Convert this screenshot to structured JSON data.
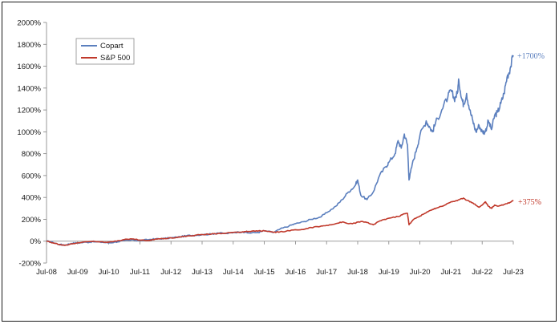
{
  "chart_data": {
    "type": "line",
    "title": "",
    "xlabel": "",
    "ylabel": "",
    "x_ticks": [
      "Jul-08",
      "Jul-09",
      "Jul-10",
      "Jul-11",
      "Jul-12",
      "Jul-13",
      "Jul-14",
      "Jul-15",
      "Jul-16",
      "Jul-17",
      "Jul-18",
      "Jul-19",
      "Jul-20",
      "Jul-21",
      "Jul-22",
      "Jul-23"
    ],
    "y_ticks": [
      "-200%",
      "0%",
      "200%",
      "400%",
      "600%",
      "800%",
      "1000%",
      "1200%",
      "1400%",
      "1600%",
      "1800%",
      "2000%"
    ],
    "ylim": [
      -200,
      2000
    ],
    "xlim": [
      2008.5,
      2023.5
    ],
    "grid": false,
    "legend_position": "top-left",
    "series": [
      {
        "name": "Copart",
        "color": "#5b7fbe",
        "end_label": "+1700%",
        "points": [
          [
            2008.5,
            0
          ],
          [
            2008.7,
            -10
          ],
          [
            2008.9,
            -30
          ],
          [
            2009.1,
            -35
          ],
          [
            2009.3,
            -20
          ],
          [
            2009.5,
            -15
          ],
          [
            2009.8,
            -10
          ],
          [
            2010.0,
            -5
          ],
          [
            2010.3,
            -10
          ],
          [
            2010.5,
            -15
          ],
          [
            2010.8,
            -5
          ],
          [
            2011.0,
            5
          ],
          [
            2011.3,
            10
          ],
          [
            2011.5,
            5
          ],
          [
            2011.8,
            15
          ],
          [
            2012.0,
            20
          ],
          [
            2012.3,
            25
          ],
          [
            2012.5,
            30
          ],
          [
            2012.8,
            40
          ],
          [
            2013.0,
            50
          ],
          [
            2013.3,
            55
          ],
          [
            2013.5,
            60
          ],
          [
            2013.8,
            65
          ],
          [
            2014.0,
            75
          ],
          [
            2014.3,
            70
          ],
          [
            2014.5,
            80
          ],
          [
            2014.8,
            85
          ],
          [
            2015.0,
            75
          ],
          [
            2015.3,
            80
          ],
          [
            2015.5,
            95
          ],
          [
            2015.8,
            80
          ],
          [
            2016.0,
            110
          ],
          [
            2016.3,
            140
          ],
          [
            2016.5,
            160
          ],
          [
            2016.8,
            180
          ],
          [
            2017.0,
            200
          ],
          [
            2017.3,
            220
          ],
          [
            2017.5,
            260
          ],
          [
            2017.8,
            320
          ],
          [
            2018.0,
            380
          ],
          [
            2018.2,
            450
          ],
          [
            2018.4,
            500
          ],
          [
            2018.5,
            560
          ],
          [
            2018.6,
            420
          ],
          [
            2018.8,
            380
          ],
          [
            2019.0,
            450
          ],
          [
            2019.2,
            600
          ],
          [
            2019.4,
            680
          ],
          [
            2019.5,
            720
          ],
          [
            2019.7,
            800
          ],
          [
            2019.8,
            920
          ],
          [
            2019.9,
            850
          ],
          [
            2020.0,
            980
          ],
          [
            2020.1,
            880
          ],
          [
            2020.15,
            560
          ],
          [
            2020.25,
            700
          ],
          [
            2020.4,
            850
          ],
          [
            2020.5,
            970
          ],
          [
            2020.7,
            1100
          ],
          [
            2020.8,
            1050
          ],
          [
            2020.9,
            1000
          ],
          [
            2021.0,
            1080
          ],
          [
            2021.2,
            1200
          ],
          [
            2021.4,
            1320
          ],
          [
            2021.5,
            1380
          ],
          [
            2021.6,
            1300
          ],
          [
            2021.7,
            1350
          ],
          [
            2021.75,
            1470
          ],
          [
            2021.85,
            1300
          ],
          [
            2021.9,
            1250
          ],
          [
            2022.0,
            1350
          ],
          [
            2022.1,
            1200
          ],
          [
            2022.2,
            1100
          ],
          [
            2022.3,
            1000
          ],
          [
            2022.4,
            1060
          ],
          [
            2022.5,
            1000
          ],
          [
            2022.6,
            1000
          ],
          [
            2022.7,
            1100
          ],
          [
            2022.8,
            1020
          ],
          [
            2022.9,
            1150
          ],
          [
            2023.0,
            1180
          ],
          [
            2023.1,
            1260
          ],
          [
            2023.2,
            1350
          ],
          [
            2023.3,
            1500
          ],
          [
            2023.4,
            1580
          ],
          [
            2023.5,
            1700
          ]
        ]
      },
      {
        "name": "S&P 500",
        "color": "#c0392b",
        "end_label": "+375%",
        "points": [
          [
            2008.5,
            0
          ],
          [
            2008.7,
            -15
          ],
          [
            2008.9,
            -30
          ],
          [
            2009.1,
            -38
          ],
          [
            2009.3,
            -25
          ],
          [
            2009.5,
            -15
          ],
          [
            2009.8,
            -5
          ],
          [
            2010.0,
            0
          ],
          [
            2010.3,
            -5
          ],
          [
            2010.5,
            -10
          ],
          [
            2010.8,
            5
          ],
          [
            2011.0,
            15
          ],
          [
            2011.3,
            20
          ],
          [
            2011.5,
            10
          ],
          [
            2011.8,
            5
          ],
          [
            2012.0,
            20
          ],
          [
            2012.3,
            25
          ],
          [
            2012.5,
            30
          ],
          [
            2012.8,
            40
          ],
          [
            2013.0,
            45
          ],
          [
            2013.3,
            55
          ],
          [
            2013.5,
            60
          ],
          [
            2013.8,
            65
          ],
          [
            2014.0,
            70
          ],
          [
            2014.3,
            75
          ],
          [
            2014.5,
            80
          ],
          [
            2014.8,
            85
          ],
          [
            2015.0,
            90
          ],
          [
            2015.3,
            92
          ],
          [
            2015.5,
            95
          ],
          [
            2015.8,
            80
          ],
          [
            2016.0,
            85
          ],
          [
            2016.3,
            95
          ],
          [
            2016.5,
            105
          ],
          [
            2016.8,
            110
          ],
          [
            2017.0,
            125
          ],
          [
            2017.3,
            135
          ],
          [
            2017.5,
            145
          ],
          [
            2017.8,
            160
          ],
          [
            2018.0,
            175
          ],
          [
            2018.2,
            160
          ],
          [
            2018.4,
            165
          ],
          [
            2018.6,
            180
          ],
          [
            2018.8,
            170
          ],
          [
            2019.0,
            150
          ],
          [
            2019.2,
            185
          ],
          [
            2019.5,
            210
          ],
          [
            2019.8,
            225
          ],
          [
            2020.0,
            250
          ],
          [
            2020.1,
            255
          ],
          [
            2020.15,
            150
          ],
          [
            2020.3,
            200
          ],
          [
            2020.5,
            230
          ],
          [
            2020.7,
            260
          ],
          [
            2020.9,
            290
          ],
          [
            2021.0,
            300
          ],
          [
            2021.3,
            330
          ],
          [
            2021.5,
            360
          ],
          [
            2021.7,
            370
          ],
          [
            2021.9,
            395
          ],
          [
            2022.0,
            375
          ],
          [
            2022.2,
            350
          ],
          [
            2022.4,
            310
          ],
          [
            2022.5,
            330
          ],
          [
            2022.6,
            360
          ],
          [
            2022.7,
            320
          ],
          [
            2022.8,
            300
          ],
          [
            2022.9,
            330
          ],
          [
            2023.0,
            320
          ],
          [
            2023.2,
            335
          ],
          [
            2023.4,
            355
          ],
          [
            2023.5,
            375
          ]
        ]
      }
    ]
  }
}
